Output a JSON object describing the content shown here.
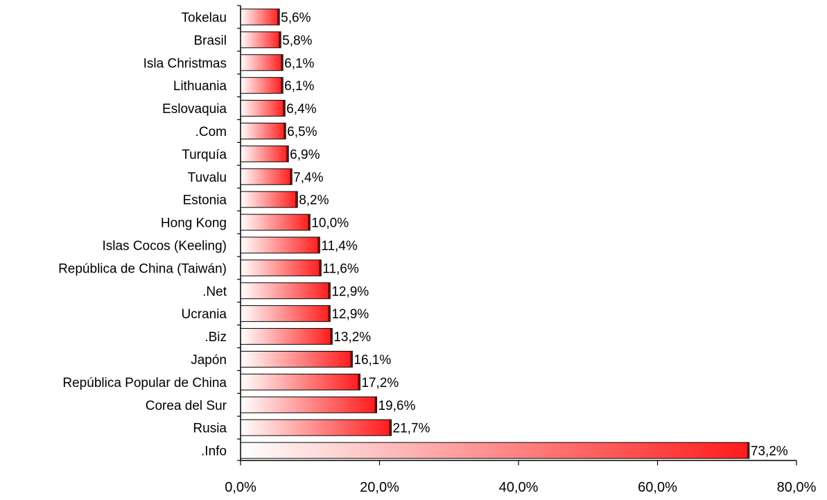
{
  "chart_data": {
    "type": "bar",
    "orientation": "horizontal",
    "categories": [
      "Tokelau",
      "Brasil",
      "Isla Christmas",
      "Lithuania",
      "Eslovaquia",
      ".Com",
      "Turquía",
      "Tuvalu",
      "Estonia",
      "Hong Kong",
      "Islas Cocos (Keeling)",
      "República de China (Taiwán)",
      ".Net",
      "Ucrania",
      ".Biz",
      "Japón",
      "República Popular de China",
      "Corea del Sur",
      "Rusia",
      ".Info"
    ],
    "values": [
      5.6,
      5.8,
      6.1,
      6.1,
      6.4,
      6.5,
      6.9,
      7.4,
      8.2,
      10.0,
      11.4,
      11.6,
      12.9,
      12.9,
      13.2,
      16.1,
      17.2,
      19.6,
      21.7,
      73.2
    ],
    "value_labels": [
      "5,6%",
      "5,8%",
      "6,1%",
      "6,1%",
      "6,4%",
      "6,5%",
      "6,9%",
      "7,4%",
      "8,2%",
      "10,0%",
      "11,4%",
      "11,6%",
      "12,9%",
      "12,9%",
      "13,2%",
      "16,1%",
      "17,2%",
      "19,6%",
      "21,7%",
      "73,2%"
    ],
    "xlim": [
      0,
      80
    ],
    "x_ticks": [
      0,
      20,
      40,
      60,
      80
    ],
    "x_tick_labels": [
      "0,0%",
      "20,0%",
      "40,0%",
      "60,0%",
      "80,0%"
    ],
    "grid": false,
    "colors": {
      "bar_start": "#ffffff",
      "bar_end": "#ff1a1a",
      "bar_border": "#000000",
      "axis": "#000000"
    }
  }
}
